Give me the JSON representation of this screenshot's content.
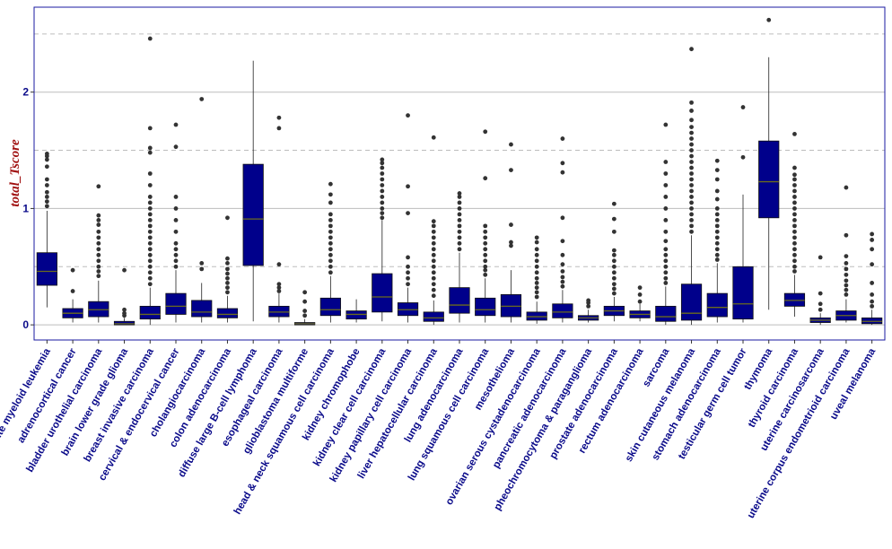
{
  "chart_data": {
    "type": "box",
    "title": "",
    "xlabel": "",
    "ylabel": "total_Tscore",
    "ylim": [
      -0.13,
      2.73
    ],
    "yticks": [
      0,
      1,
      2
    ],
    "y_minor_gridlines": [
      0.5,
      1.5,
      2.5
    ],
    "grid": true,
    "colors": {
      "box_fill": "#00008b",
      "median": "#6b6b1e",
      "outlier": "#333333",
      "panel_border": "#1a1aa0",
      "tick_label": "#0b0b8a",
      "ylabel": "#a01010",
      "grid": "#bdbdbd"
    },
    "categories": [
      "acute myeloid leukemia",
      "adrenocortical cancer",
      "bladder urothelial carcinoma",
      "brain lower grade glioma",
      "breast invasive carcinoma",
      "cervical & endocervical cancer",
      "cholangiocarcinoma",
      "colon adenocarcinoma",
      "diffuse large B-cell lymphoma",
      "esophageal carcinoma",
      "glioblastoma multiforme",
      "head & neck squamous cell carcinoma",
      "kidney chromophobe",
      "kidney clear cell carcinoma",
      "kidney papillary cell carcinoma",
      "liver hepatocellular carcinoma",
      "lung adenocarcinoma",
      "lung squamous cell carcinoma",
      "mesothelioma",
      "ovarian serous cystadenocarcinoma",
      "pancreatic adenocarcinoma",
      "pheochromocytoma & paraganglioma",
      "prostate adenocarcinoma",
      "rectum adenocarcinoma",
      "sarcoma",
      "skin cutaneous melanoma",
      "stomach adenocarcinoma",
      "testicular germ cell tumor",
      "thymoma",
      "thyroid carcinoma",
      "uterine carcinosarcoma",
      "uterine corpus endometrioid carcinoma",
      "uveal melanoma"
    ],
    "boxes": [
      {
        "min": 0.15,
        "q1": 0.34,
        "median": 0.46,
        "q3": 0.62,
        "max": 0.98,
        "outliers": [
          1.02,
          1.06,
          1.1,
          1.14,
          1.2,
          1.25,
          1.36,
          1.42,
          1.45,
          1.47
        ]
      },
      {
        "min": 0.02,
        "q1": 0.06,
        "median": 0.1,
        "q3": 0.14,
        "max": 0.22,
        "outliers": [
          0.29,
          0.47
        ]
      },
      {
        "min": 0.02,
        "q1": 0.07,
        "median": 0.13,
        "q3": 0.2,
        "max": 0.38,
        "outliers": [
          0.42,
          0.46,
          0.5,
          0.55,
          0.6,
          0.65,
          0.7,
          0.75,
          0.8,
          0.86,
          0.9,
          0.94,
          1.19
        ]
      },
      {
        "min": 0.0,
        "q1": 0.0,
        "median": 0.01,
        "q3": 0.03,
        "max": 0.06,
        "outliers": [
          0.08,
          0.1,
          0.13,
          0.47
        ]
      },
      {
        "min": 0.0,
        "q1": 0.05,
        "median": 0.09,
        "q3": 0.16,
        "max": 0.32,
        "outliers": [
          0.35,
          0.4,
          0.45,
          0.5,
          0.55,
          0.6,
          0.65,
          0.7,
          0.75,
          0.8,
          0.85,
          0.9,
          0.95,
          1.0,
          1.05,
          1.1,
          1.2,
          1.3,
          1.48,
          1.52,
          1.69,
          2.46
        ]
      },
      {
        "min": 0.02,
        "q1": 0.09,
        "median": 0.16,
        "q3": 0.27,
        "max": 0.47,
        "outliers": [
          0.5,
          0.55,
          0.6,
          0.65,
          0.7,
          0.8,
          0.9,
          1.0,
          1.1,
          1.53,
          1.72
        ]
      },
      {
        "min": 0.02,
        "q1": 0.07,
        "median": 0.11,
        "q3": 0.21,
        "max": 0.36,
        "outliers": [
          0.48,
          0.53,
          1.94
        ]
      },
      {
        "min": 0.02,
        "q1": 0.06,
        "median": 0.09,
        "q3": 0.14,
        "max": 0.25,
        "outliers": [
          0.28,
          0.32,
          0.36,
          0.4,
          0.44,
          0.48,
          0.53,
          0.57,
          0.92
        ]
      },
      {
        "min": 0.03,
        "q1": 0.51,
        "median": 0.91,
        "q3": 1.38,
        "max": 2.27,
        "outliers": []
      },
      {
        "min": 0.02,
        "q1": 0.07,
        "median": 0.11,
        "q3": 0.16,
        "max": 0.27,
        "outliers": [
          0.29,
          0.32,
          0.35,
          0.52,
          1.69,
          1.78
        ]
      },
      {
        "min": 0.0,
        "q1": 0.0,
        "median": 0.01,
        "q3": 0.02,
        "max": 0.05,
        "outliers": [
          0.08,
          0.12,
          0.2,
          0.28
        ]
      },
      {
        "min": 0.02,
        "q1": 0.08,
        "median": 0.13,
        "q3": 0.23,
        "max": 0.42,
        "outliers": [
          0.45,
          0.5,
          0.55,
          0.6,
          0.65,
          0.7,
          0.75,
          0.8,
          0.85,
          0.9,
          0.95,
          1.05,
          1.12,
          1.21
        ]
      },
      {
        "min": 0.02,
        "q1": 0.05,
        "median": 0.09,
        "q3": 0.12,
        "max": 0.22,
        "outliers": []
      },
      {
        "min": 0.03,
        "q1": 0.11,
        "median": 0.24,
        "q3": 0.44,
        "max": 0.9,
        "outliers": [
          0.92,
          0.96,
          1.0,
          1.05,
          1.1,
          1.15,
          1.2,
          1.25,
          1.3,
          1.35,
          1.39,
          1.42
        ]
      },
      {
        "min": 0.02,
        "q1": 0.08,
        "median": 0.13,
        "q3": 0.19,
        "max": 0.32,
        "outliers": [
          0.35,
          0.4,
          0.45,
          0.5,
          0.58,
          0.96,
          1.19,
          1.8
        ]
      },
      {
        "min": 0.0,
        "q1": 0.03,
        "median": 0.06,
        "q3": 0.11,
        "max": 0.21,
        "outliers": [
          0.25,
          0.3,
          0.35,
          0.4,
          0.45,
          0.5,
          0.55,
          0.6,
          0.65,
          0.7,
          0.75,
          0.8,
          0.85,
          0.89,
          1.61
        ]
      },
      {
        "min": 0.02,
        "q1": 0.1,
        "median": 0.17,
        "q3": 0.32,
        "max": 0.62,
        "outliers": [
          0.65,
          0.7,
          0.75,
          0.8,
          0.85,
          0.9,
          0.95,
          1.0,
          1.05,
          1.1,
          1.13
        ]
      },
      {
        "min": 0.02,
        "q1": 0.08,
        "median": 0.13,
        "q3": 0.23,
        "max": 0.4,
        "outliers": [
          0.43,
          0.47,
          0.5,
          0.55,
          0.6,
          0.65,
          0.7,
          0.75,
          0.8,
          0.85,
          1.26,
          1.66
        ]
      },
      {
        "min": 0.02,
        "q1": 0.07,
        "median": 0.16,
        "q3": 0.26,
        "max": 0.47,
        "outliers": [
          0.68,
          0.71,
          0.86,
          1.33,
          1.55
        ]
      },
      {
        "min": 0.01,
        "q1": 0.04,
        "median": 0.07,
        "q3": 0.11,
        "max": 0.2,
        "outliers": [
          0.24,
          0.28,
          0.32,
          0.36,
          0.4,
          0.45,
          0.5,
          0.55,
          0.6,
          0.65,
          0.71,
          0.75
        ]
      },
      {
        "min": 0.02,
        "q1": 0.06,
        "median": 0.11,
        "q3": 0.18,
        "max": 0.3,
        "outliers": [
          0.33,
          0.37,
          0.41,
          0.46,
          0.52,
          0.6,
          0.72,
          0.92,
          1.31,
          1.39,
          1.6
        ]
      },
      {
        "min": 0.02,
        "q1": 0.04,
        "median": 0.06,
        "q3": 0.08,
        "max": 0.13,
        "outliers": [
          0.16,
          0.19,
          0.21
        ]
      },
      {
        "min": 0.03,
        "q1": 0.08,
        "median": 0.12,
        "q3": 0.16,
        "max": 0.24,
        "outliers": [
          0.27,
          0.31,
          0.35,
          0.4,
          0.45,
          0.5,
          0.55,
          0.6,
          0.64,
          0.8,
          0.91,
          1.04
        ]
      },
      {
        "min": 0.03,
        "q1": 0.06,
        "median": 0.09,
        "q3": 0.12,
        "max": 0.18,
        "outliers": [
          0.2,
          0.26,
          0.32
        ]
      },
      {
        "min": 0.0,
        "q1": 0.03,
        "median": 0.07,
        "q3": 0.16,
        "max": 0.33,
        "outliers": [
          0.36,
          0.4,
          0.45,
          0.5,
          0.55,
          0.6,
          0.65,
          0.72,
          0.8,
          0.9,
          1.0,
          1.1,
          1.2,
          1.3,
          1.4,
          1.72
        ]
      },
      {
        "min": 0.0,
        "q1": 0.04,
        "median": 0.1,
        "q3": 0.35,
        "max": 0.77,
        "outliers": [
          0.8,
          0.85,
          0.9,
          0.95,
          1.0,
          1.05,
          1.1,
          1.15,
          1.2,
          1.25,
          1.3,
          1.35,
          1.4,
          1.45,
          1.5,
          1.55,
          1.6,
          1.65,
          1.7,
          1.76,
          1.84,
          1.91,
          2.37
        ]
      },
      {
        "min": 0.02,
        "q1": 0.07,
        "median": 0.15,
        "q3": 0.27,
        "max": 0.53,
        "outliers": [
          0.56,
          0.6,
          0.65,
          0.7,
          0.75,
          0.8,
          0.85,
          0.9,
          0.95,
          1.0,
          1.08,
          1.15,
          1.25,
          1.33,
          1.41
        ]
      },
      {
        "min": 0.02,
        "q1": 0.05,
        "median": 0.18,
        "q3": 0.5,
        "max": 1.12,
        "outliers": [
          1.44,
          1.87
        ]
      },
      {
        "min": 0.13,
        "q1": 0.92,
        "median": 1.23,
        "q3": 1.58,
        "max": 2.3,
        "outliers": [
          2.62
        ]
      },
      {
        "min": 0.07,
        "q1": 0.16,
        "median": 0.21,
        "q3": 0.27,
        "max": 0.43,
        "outliers": [
          0.46,
          0.5,
          0.55,
          0.6,
          0.65,
          0.7,
          0.75,
          0.8,
          0.85,
          0.9,
          0.95,
          1.0,
          1.05,
          1.1,
          1.15,
          1.2,
          1.25,
          1.29,
          1.35,
          1.64
        ]
      },
      {
        "min": 0.0,
        "q1": 0.02,
        "median": 0.04,
        "q3": 0.06,
        "max": 0.1,
        "outliers": [
          0.13,
          0.18,
          0.27,
          0.58
        ]
      },
      {
        "min": 0.02,
        "q1": 0.04,
        "median": 0.08,
        "q3": 0.12,
        "max": 0.22,
        "outliers": [
          0.26,
          0.3,
          0.34,
          0.38,
          0.43,
          0.48,
          0.53,
          0.59,
          0.77,
          1.18
        ]
      },
      {
        "min": 0.0,
        "q1": 0.01,
        "median": 0.03,
        "q3": 0.06,
        "max": 0.13,
        "outliers": [
          0.16,
          0.2,
          0.26,
          0.36,
          0.52,
          0.65,
          0.73,
          0.78
        ]
      }
    ]
  }
}
